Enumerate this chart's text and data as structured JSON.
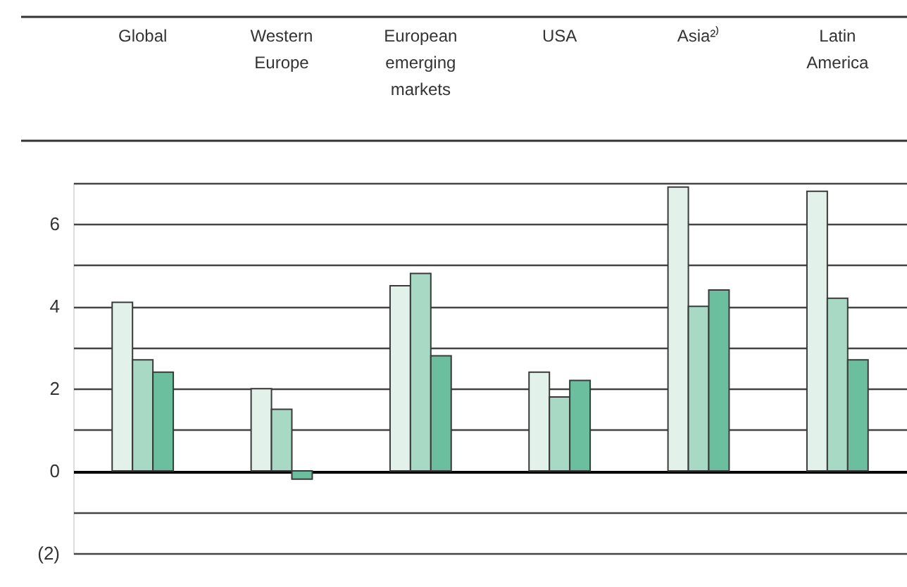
{
  "chart_data": {
    "type": "bar",
    "categories": [
      "Global",
      "Western Europe",
      "European emerging markets",
      "USA",
      "Asia²⁾",
      "Latin America"
    ],
    "series": [
      {
        "color": "#e2f2eb",
        "values": [
          4.1,
          2.0,
          4.5,
          2.4,
          6.9,
          6.8
        ]
      },
      {
        "color": "#a8d9c5",
        "values": [
          2.7,
          1.5,
          4.8,
          1.8,
          4.0,
          4.2
        ]
      },
      {
        "color": "#6bbf9e",
        "values": [
          2.4,
          -0.2,
          2.8,
          2.2,
          4.4,
          2.7
        ]
      }
    ],
    "ylim": [
      -2,
      7
    ],
    "yticks": [
      {
        "value": -2,
        "label": "(2)"
      },
      {
        "value": -1,
        "label": null
      },
      0,
      {
        "value": 1,
        "label": null
      },
      2,
      {
        "value": 3,
        "label": null
      },
      4,
      {
        "value": 5,
        "label": null
      },
      6,
      {
        "value": 7,
        "label": null
      }
    ],
    "grid": "y"
  }
}
